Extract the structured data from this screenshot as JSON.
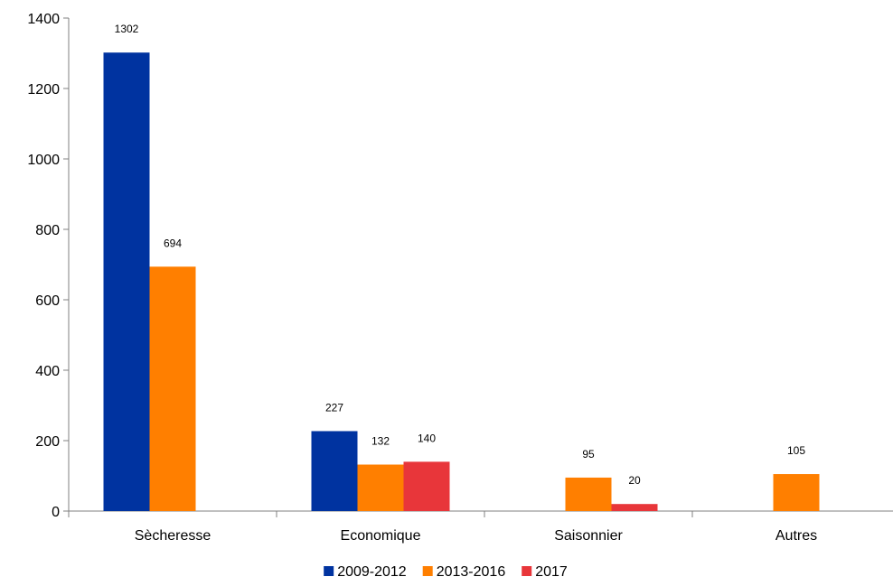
{
  "chart_data": {
    "type": "bar",
    "categories": [
      "Sècheresse",
      "Economique",
      "Saisonnier",
      "Autres"
    ],
    "series": [
      {
        "name": "2009-2012",
        "color": "#0033A0",
        "values": [
          1302,
          227,
          null,
          null
        ]
      },
      {
        "name": "2013-2016",
        "color": "#FF7F00",
        "values": [
          694,
          132,
          95,
          105
        ]
      },
      {
        "name": "2017",
        "color": "#E8363A",
        "values": [
          null,
          140,
          20,
          null
        ]
      }
    ],
    "ylim": [
      0,
      1400
    ],
    "yticks": [
      0,
      200,
      400,
      600,
      800,
      1000,
      1200,
      1400
    ],
    "legend_position": "bottom",
    "grid": false
  }
}
